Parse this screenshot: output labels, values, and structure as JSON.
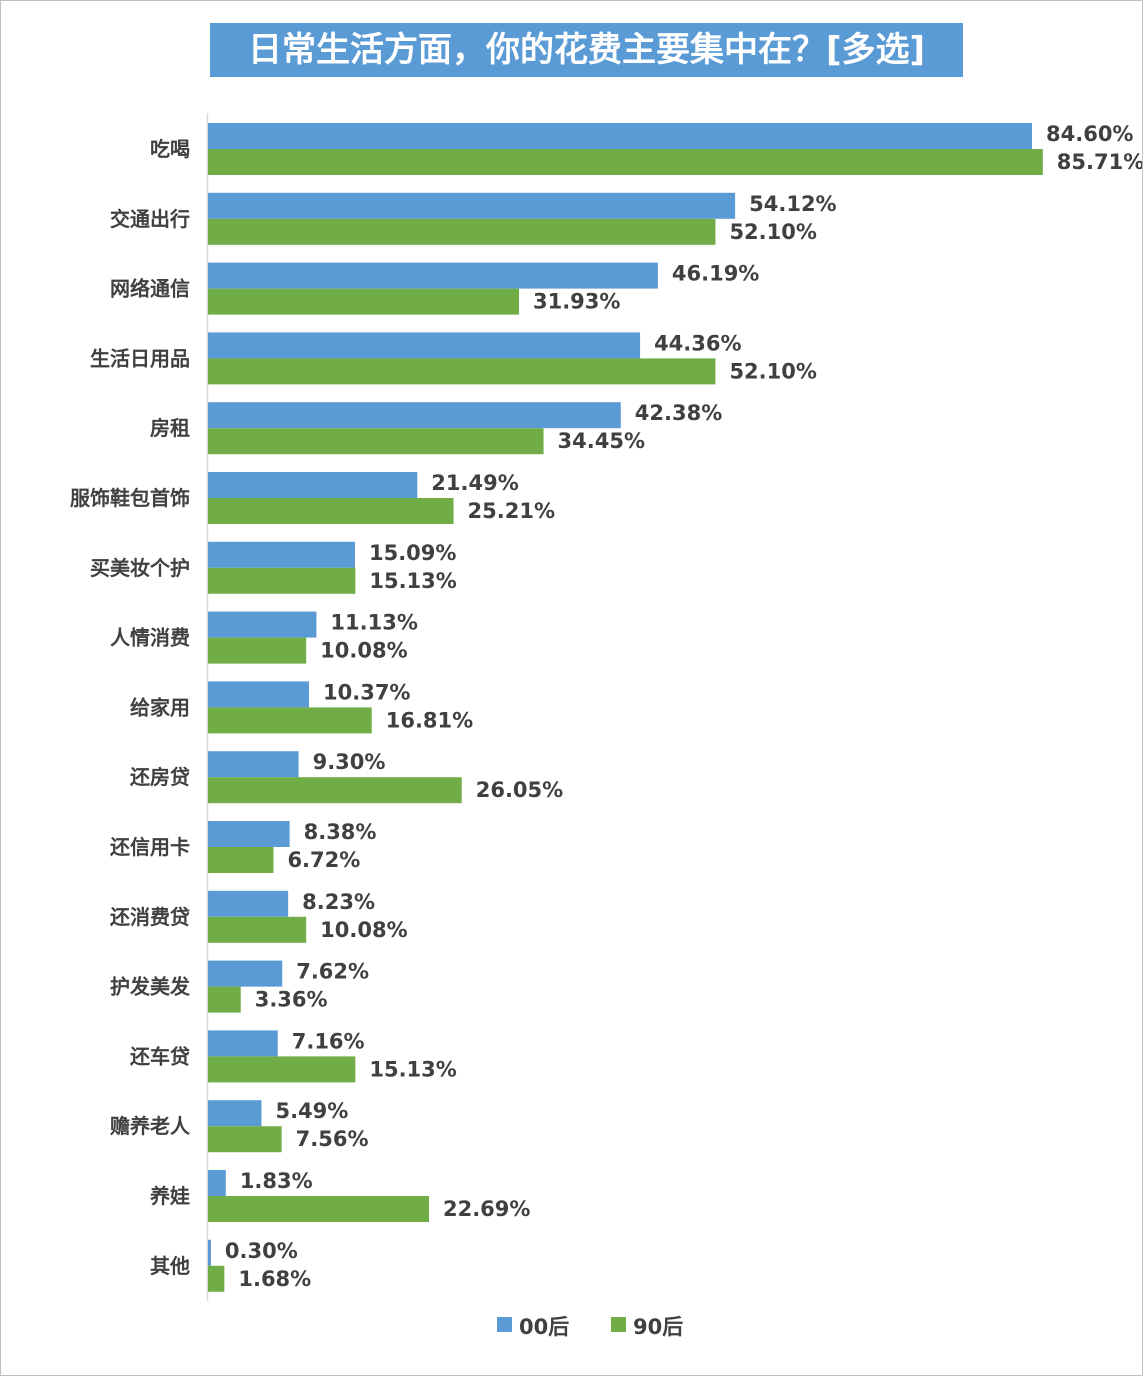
{
  "chart_data": {
    "type": "bar",
    "orientation": "horizontal",
    "title": "日常生活方面，你的花费主要集中在？[多选]",
    "categories": [
      "吃喝",
      "交通出行",
      "网络通信",
      "生活日用品",
      "房租",
      "服饰鞋包首饰",
      "买美妆个护",
      "人情消费",
      "给家用",
      "还房贷",
      "还信用卡",
      "还消费贷",
      "护发美发",
      "还车贷",
      "赡养老人",
      "养娃",
      "其他"
    ],
    "series": [
      {
        "name": "00后",
        "color": "#5b9bd5",
        "values": [
          84.6,
          54.12,
          46.19,
          44.36,
          42.38,
          21.49,
          15.09,
          11.13,
          10.37,
          9.3,
          8.38,
          8.23,
          7.62,
          7.16,
          5.49,
          1.83,
          0.3
        ]
      },
      {
        "name": "90后",
        "color": "#70ad47",
        "values": [
          85.71,
          52.1,
          31.93,
          52.1,
          34.45,
          25.21,
          15.13,
          10.08,
          16.81,
          26.05,
          6.72,
          10.08,
          3.36,
          15.13,
          7.56,
          22.69,
          1.68
        ]
      }
    ],
    "value_format": "percent_2dp",
    "xlim": [
      0,
      90
    ],
    "grid": false,
    "legend": "bottom"
  }
}
